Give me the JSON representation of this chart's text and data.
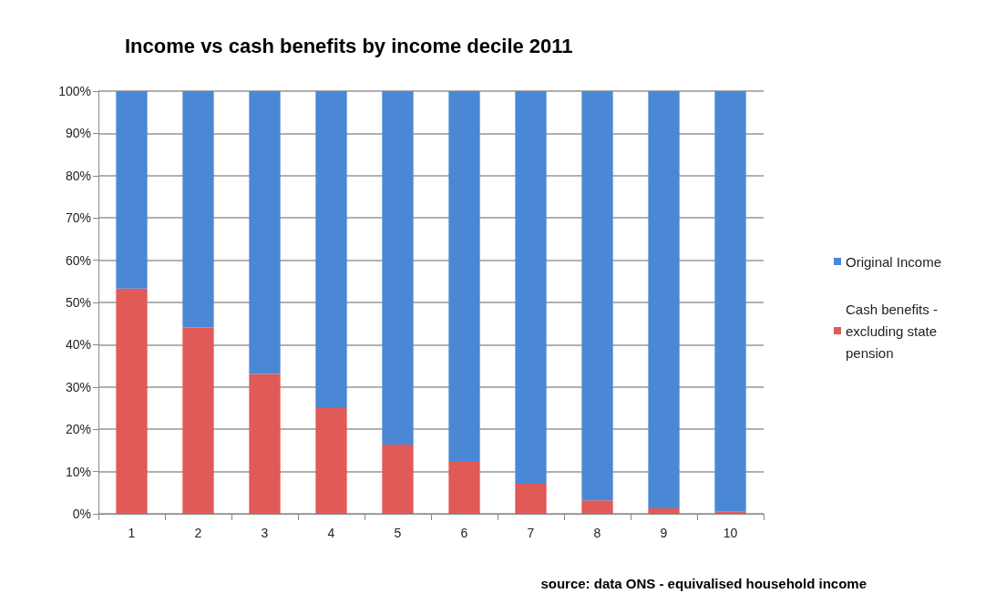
{
  "chart_data": {
    "type": "bar",
    "stacked": true,
    "title": "Income vs cash benefits by income decile 2011",
    "categories": [
      "1",
      "2",
      "3",
      "4",
      "5",
      "6",
      "7",
      "8",
      "9",
      "10"
    ],
    "series": [
      {
        "name": "Cash benefits - excluding state pension",
        "color": "#e05a58",
        "values": [
          53.3,
          44.1,
          33.1,
          25.0,
          16.4,
          12.3,
          7.1,
          3.2,
          1.3,
          0.6
        ]
      },
      {
        "name": "Original Income",
        "color": "#4a88d6",
        "values": [
          46.7,
          55.9,
          66.9,
          75.0,
          83.6,
          87.7,
          92.9,
          96.8,
          98.7,
          99.4
        ]
      }
    ],
    "ylim": [
      0,
      100
    ],
    "yticks": [
      {
        "value": 0,
        "label": "0%"
      },
      {
        "value": 10,
        "label": "10%"
      },
      {
        "value": 20,
        "label": "20%"
      },
      {
        "value": 30,
        "label": "30%"
      },
      {
        "value": 40,
        "label": "40%"
      },
      {
        "value": 50,
        "label": "50%"
      },
      {
        "value": 60,
        "label": "60%"
      },
      {
        "value": 70,
        "label": "70%"
      },
      {
        "value": 80,
        "label": "80%"
      },
      {
        "value": 90,
        "label": "90%"
      },
      {
        "value": 100,
        "label": "100%"
      }
    ],
    "grid": "y",
    "legend": "right",
    "annotations": [
      "source: data ONS - equivalised household income"
    ]
  }
}
